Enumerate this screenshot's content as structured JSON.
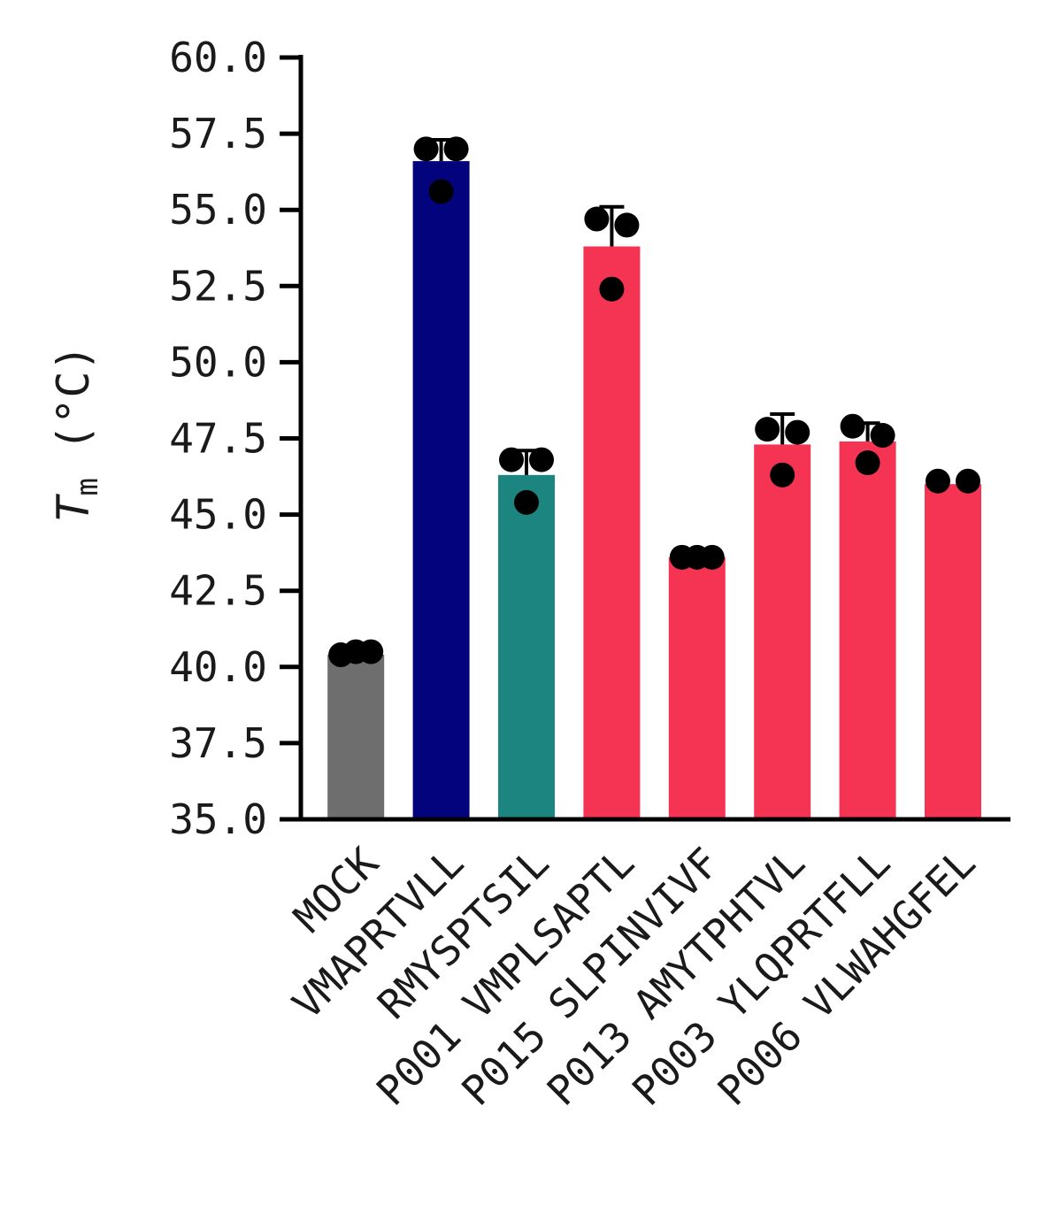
{
  "chart_data": {
    "type": "bar",
    "title": "",
    "xlabel": "",
    "ylabel": "T",
    "ylabel_subscript": "m",
    "ylabel_unit": " (°C)",
    "ylim": [
      35.0,
      60.0
    ],
    "yticks": [
      "35.0",
      "37.5",
      "40.0",
      "42.5",
      "45.0",
      "47.5",
      "50.0",
      "52.5",
      "55.0",
      "57.5",
      "60.0"
    ],
    "grid": false,
    "legend": "none",
    "categories": [
      "MOCK",
      "VMAPRTVLL",
      "RMYSPTSIL",
      "P001 VMPLSAPTL",
      "P015 SLPINVIVF",
      "P013 AMYTPHTVL",
      "P003 YLQPRTFLL",
      "P006 VLWAHGFEL"
    ],
    "values": [
      40.4,
      56.6,
      46.3,
      53.8,
      43.6,
      47.3,
      47.4,
      46.0
    ],
    "error_upper": [
      40.4,
      57.3,
      47.1,
      55.1,
      43.6,
      48.3,
      48.0,
      46.0
    ],
    "replicates": [
      [
        40.4,
        40.5,
        40.5
      ],
      [
        57.0,
        57.0,
        55.6
      ],
      [
        46.8,
        46.8,
        45.4
      ],
      [
        54.7,
        54.5,
        52.4
      ],
      [
        43.6,
        43.6,
        43.6
      ],
      [
        47.8,
        47.7,
        46.3
      ],
      [
        47.9,
        47.6,
        46.7
      ],
      [
        46.1,
        46.1
      ]
    ],
    "colors": [
      "#6e6e6e",
      "#03037e",
      "#1d8580",
      "#f53454",
      "#f53454",
      "#f53454",
      "#f53454",
      "#f53454"
    ]
  }
}
